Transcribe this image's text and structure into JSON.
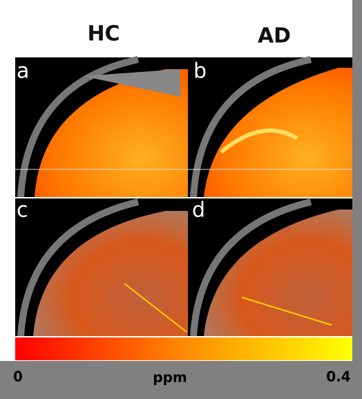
{
  "columns": [
    "HC",
    "AD"
  ],
  "panels": [
    "a",
    "b",
    "c",
    "d"
  ],
  "colorbar": {
    "min": 0,
    "label": "ppm",
    "max": 0.4
  }
}
